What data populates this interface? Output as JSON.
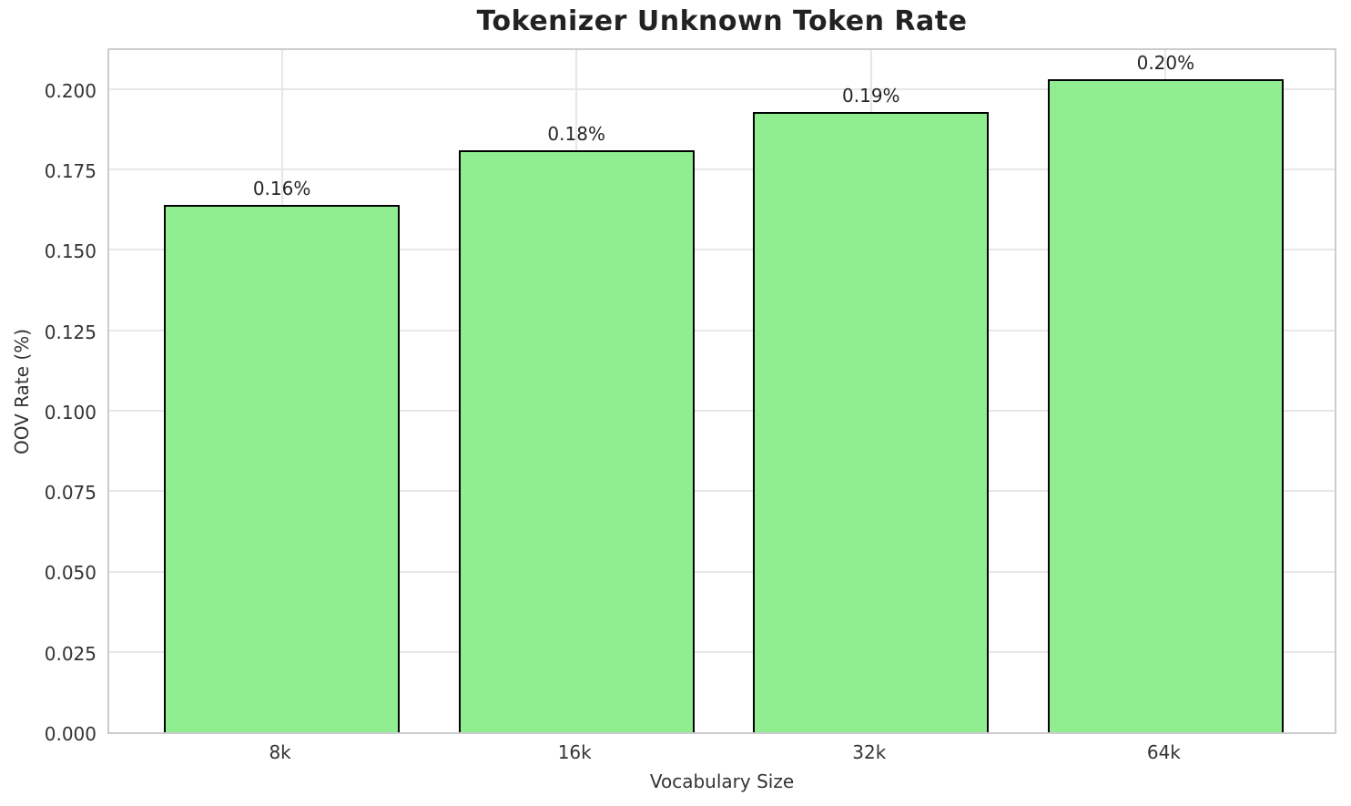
{
  "figure": {
    "background": "#ffffff",
    "frame_color": "#cccccc",
    "grid_color": "#e7e7e7",
    "text_color": "#333333",
    "title_color": "#222222"
  },
  "chart_data": {
    "type": "bar",
    "title": "Tokenizer Unknown Token Rate",
    "xlabel": "Vocabulary Size",
    "ylabel": "OOV Rate (%)",
    "categories": [
      "8k",
      "16k",
      "32k",
      "64k"
    ],
    "values": [
      0.164,
      0.181,
      0.193,
      0.203
    ],
    "bar_labels": [
      "0.16%",
      "0.18%",
      "0.19%",
      "0.20%"
    ],
    "ylim": [
      0,
      0.2133
    ],
    "yticks": [
      0.0,
      0.025,
      0.05,
      0.075,
      0.1,
      0.125,
      0.15,
      0.175,
      0.2
    ],
    "ytick_labels": [
      "0.000",
      "0.025",
      "0.050",
      "0.075",
      "0.100",
      "0.125",
      "0.150",
      "0.175",
      "0.200"
    ],
    "xlim": [
      -0.586,
      3.586
    ],
    "bar_width": 0.8,
    "grid": true,
    "legend": "none",
    "bar_color": "#90EE90",
    "bar_edge_color": "#000000"
  }
}
